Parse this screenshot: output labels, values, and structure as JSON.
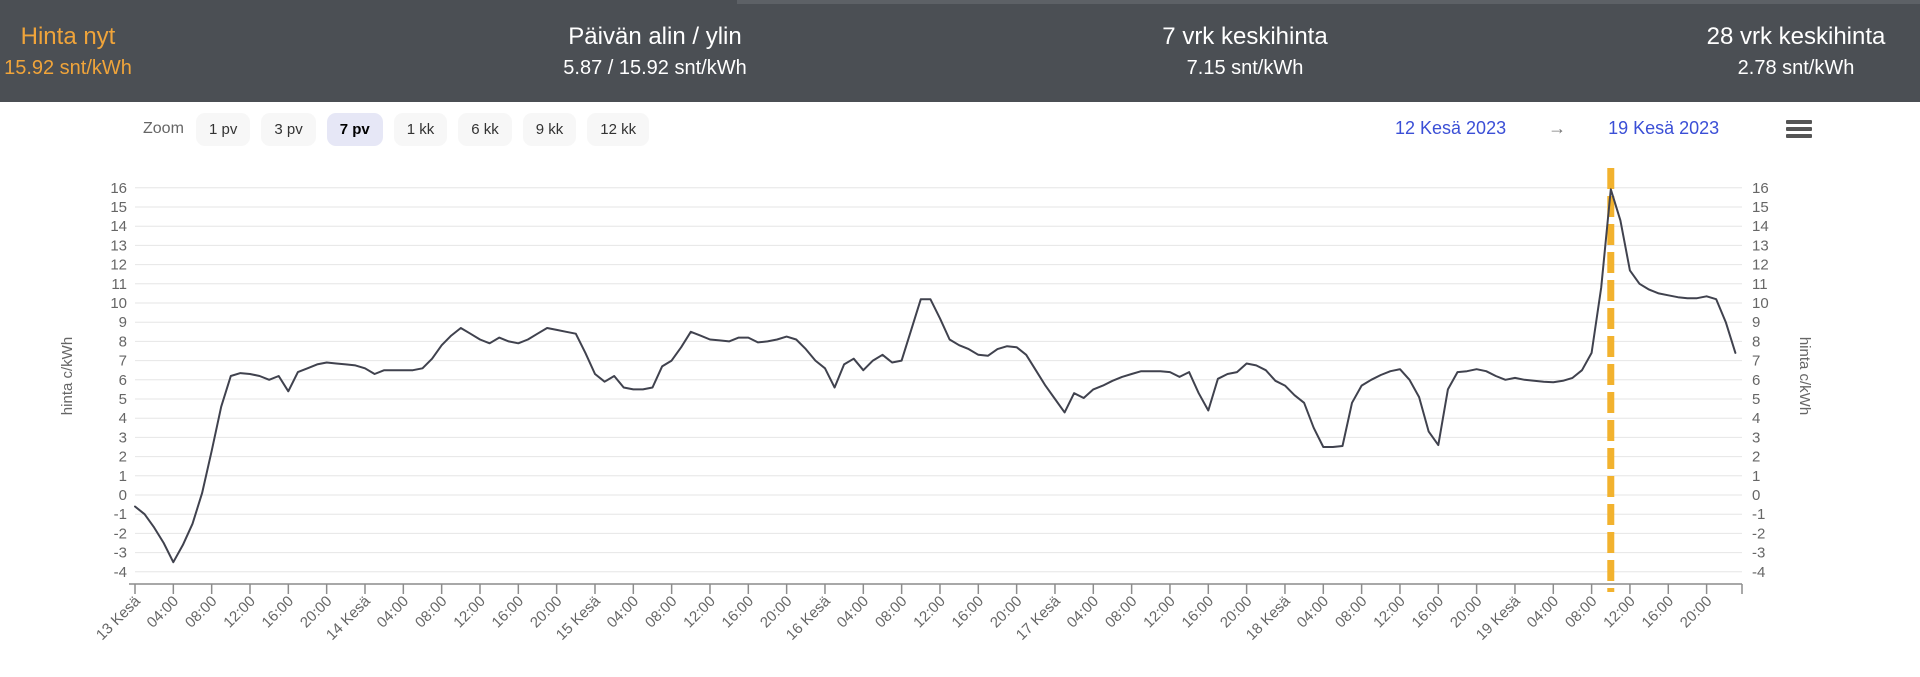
{
  "colors": {
    "header_bg": "#4b4f54",
    "accent_orange": "#f0a43a",
    "link_blue": "#3b4fd6",
    "series_line": "#40424e",
    "grid_line": "#e6e6e6",
    "now_marker": "#f2b22e",
    "axis_text": "#666666",
    "axis_line": "#8c8c8c",
    "button_bg": "#f7f7f7",
    "button_selected_bg": "#e6e7f6"
  },
  "header": {
    "price_now": {
      "label": "Hinta nyt",
      "value": "15.92 snt/kWh"
    },
    "day_low_high": {
      "label": "Päivän alin / ylin",
      "value": "5.87 / 15.92 snt/kWh"
    },
    "avg_7d": {
      "label": "7 vrk keskihinta",
      "value": "7.15 snt/kWh"
    },
    "avg_28d": {
      "label": "28 vrk keskihinta",
      "value": "2.78 snt/kWh"
    }
  },
  "toolbar": {
    "zoom_label": "Zoom",
    "buttons": [
      {
        "label": "1 pv",
        "selected": false
      },
      {
        "label": "3 pv",
        "selected": false
      },
      {
        "label": "7 pv",
        "selected": true
      },
      {
        "label": "1 kk",
        "selected": false
      },
      {
        "label": "6 kk",
        "selected": false
      },
      {
        "label": "9 kk",
        "selected": false
      },
      {
        "label": "12 kk",
        "selected": false
      }
    ],
    "range": {
      "from": "12 Kesä 2023",
      "arrow": "→",
      "to": "19 Kesä 2023"
    },
    "menu_icon": "hamburger-icon"
  },
  "chart_data": {
    "type": "line",
    "title": "",
    "ylabel_left": "hinta c/kWh",
    "ylabel_right": "hinta c/kWh",
    "ylim": [
      -4,
      16
    ],
    "y_tick_step": 1,
    "grid": true,
    "x_start_label": "13 Kesä 2023 00:00",
    "hours_total": 168,
    "hours_per_tick": 4,
    "x_tick_labels": [
      "13 Kesä",
      "04:00",
      "08:00",
      "12:00",
      "16:00",
      "20:00",
      "14 Kesä",
      "04:00",
      "08:00",
      "12:00",
      "16:00",
      "20:00",
      "15 Kesä",
      "04:00",
      "08:00",
      "12:00",
      "16:00",
      "20:00",
      "16 Kesä",
      "04:00",
      "08:00",
      "12:00",
      "16:00",
      "20:00",
      "17 Kesä",
      "04:00",
      "08:00",
      "12:00",
      "16:00",
      "20:00",
      "18 Kesä",
      "04:00",
      "08:00",
      "12:00",
      "16:00",
      "20:00",
      "19 Kesä",
      "04:00",
      "08:00",
      "12:00",
      "16:00",
      "20:00"
    ],
    "now_plotline": {
      "x_hour": 154,
      "style": "dashed",
      "color": "#f2b22e"
    },
    "series": [
      {
        "name": "hinta",
        "color": "#40424e",
        "unit": "snt/kWh",
        "values": [
          -0.6,
          -1.0,
          -1.7,
          -2.5,
          -3.5,
          -2.6,
          -1.5,
          0.1,
          2.3,
          4.6,
          6.2,
          6.35,
          6.3,
          6.2,
          6.0,
          6.2,
          5.4,
          6.4,
          6.6,
          6.8,
          6.9,
          6.85,
          6.8,
          6.75,
          6.6,
          6.3,
          6.5,
          6.5,
          6.5,
          6.5,
          6.6,
          7.1,
          7.8,
          8.3,
          8.7,
          8.4,
          8.1,
          7.9,
          8.2,
          8.0,
          7.9,
          8.1,
          8.4,
          8.7,
          8.6,
          8.5,
          8.4,
          7.4,
          6.3,
          5.9,
          6.2,
          5.6,
          5.5,
          5.5,
          5.6,
          6.7,
          7.0,
          7.7,
          8.5,
          8.3,
          8.1,
          8.05,
          8.0,
          8.2,
          8.2,
          7.95,
          8.0,
          8.1,
          8.25,
          8.1,
          7.6,
          7.0,
          6.6,
          5.6,
          6.8,
          7.1,
          6.5,
          7.0,
          7.3,
          6.9,
          7.0,
          8.6,
          10.2,
          10.2,
          9.2,
          8.1,
          7.8,
          7.6,
          7.3,
          7.25,
          7.6,
          7.75,
          7.7,
          7.3,
          6.5,
          5.7,
          5.0,
          4.3,
          5.3,
          5.05,
          5.5,
          5.7,
          5.95,
          6.15,
          6.3,
          6.45,
          6.45,
          6.45,
          6.4,
          6.15,
          6.4,
          5.3,
          4.4,
          6.05,
          6.3,
          6.4,
          6.85,
          6.75,
          6.5,
          5.95,
          5.7,
          5.2,
          4.8,
          3.5,
          2.5,
          2.5,
          2.55,
          4.8,
          5.7,
          6.0,
          6.25,
          6.45,
          6.55,
          6.0,
          5.1,
          3.3,
          2.6,
          5.5,
          6.4,
          6.45,
          6.55,
          6.45,
          6.2,
          6.0,
          6.1,
          6.0,
          5.95,
          5.9,
          5.87,
          5.95,
          6.1,
          6.5,
          7.4,
          10.8,
          15.92,
          14.3,
          11.7,
          11.0,
          10.7,
          10.5,
          10.4,
          10.3,
          10.25,
          10.25,
          10.35,
          10.2,
          9.0,
          7.4
        ]
      }
    ]
  }
}
